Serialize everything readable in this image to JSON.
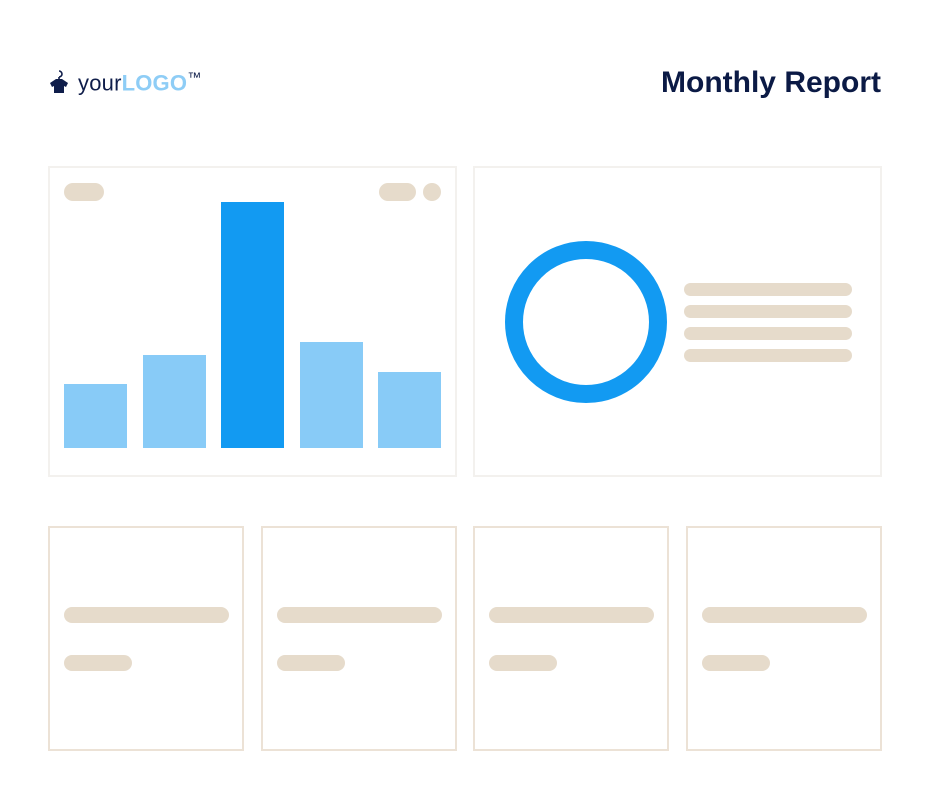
{
  "header": {
    "logo_prefix": "your",
    "logo_main": "LOGO",
    "logo_tm": "™",
    "title": "Monthly Report"
  },
  "chart_data": {
    "type": "bar",
    "categories": [
      "",
      "",
      "",
      "",
      ""
    ],
    "values": [
      26,
      38,
      100,
      43,
      31
    ],
    "highlight_index": 2,
    "ylim": [
      0,
      100
    ],
    "grid": false
  },
  "donut": {
    "value": 100
  },
  "colors": {
    "bar": "#88cbf7",
    "bar_highlight": "#129af2",
    "donut": "#129af2",
    "placeholder": "#e6dbcb",
    "logo_dark": "#0f1d4a",
    "logo_light": "#8ecdf6",
    "title": "#0b1a45"
  },
  "stat_cards": [
    {
      "label": "",
      "value": ""
    },
    {
      "label": "",
      "value": ""
    },
    {
      "label": "",
      "value": ""
    },
    {
      "label": "",
      "value": ""
    }
  ]
}
